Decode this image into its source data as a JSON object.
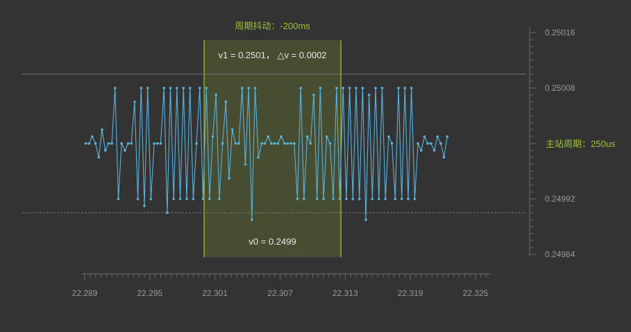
{
  "chart_data": {
    "type": "line",
    "title": "",
    "xlabel": "",
    "ylabel": "",
    "xlim": [
      22.288,
      22.327
    ],
    "ylim": [
      0.24984,
      0.25016
    ],
    "x_ticks": [
      "22.289",
      "22.295",
      "22.301",
      "22.307",
      "22.313",
      "22.319",
      "22.325"
    ],
    "y_ticks": [
      "0.25016",
      "0.25008",
      "0.25000",
      "0.24992",
      "0.24984"
    ],
    "y_tick_labels": {
      "0.25016": "0.25016",
      "0.25008": "0.25008",
      "0.24992": "0.24992",
      "0.24984": "0.24984"
    },
    "period_label": "主站周期：250us",
    "jitter_label": "周期抖动：-200ms",
    "cursor_region": {
      "x_start": 22.3,
      "x_end": 22.3126,
      "v1_text": "v1 = 0.2501，  △v = 0.0002",
      "v0_text": "v0 = 0.2499"
    },
    "reference_lines": {
      "v1": 0.2501,
      "v0": 0.2499
    },
    "series": [
      {
        "color": "#5bb4e0",
        "x_start": 22.2891,
        "x_step": 0.0003,
        "values": [
          0.25,
          0.25,
          0.25001,
          0.25,
          0.24998,
          0.25002,
          0.24999,
          0.25,
          0.25,
          0.25008,
          0.24992,
          0.25,
          0.24999,
          0.25,
          0.25,
          0.25006,
          0.24992,
          0.25008,
          0.24991,
          0.25008,
          0.24992,
          0.25,
          0.25,
          0.25,
          0.25008,
          0.2499,
          0.25008,
          0.24992,
          0.25008,
          0.24992,
          0.25008,
          0.24992,
          0.25008,
          0.24992,
          0.25,
          0.25008,
          0.24992,
          0.25008,
          0.24992,
          0.25001,
          0.25007,
          0.24992,
          0.25,
          0.25006,
          0.24995,
          0.25002,
          0.25,
          0.25,
          0.25008,
          0.24997,
          0.25008,
          0.24989,
          0.25008,
          0.24998,
          0.25,
          0.25,
          0.25001,
          0.25,
          0.25,
          0.25,
          0.25001,
          0.25,
          0.25,
          0.25,
          0.25,
          0.24992,
          0.25008,
          0.24992,
          0.25001,
          0.25,
          0.25007,
          0.24992,
          0.25008,
          0.24992,
          0.25001,
          0.25,
          0.24992,
          0.25008,
          0.24992,
          0.25008,
          0.24992,
          0.25008,
          0.24992,
          0.25008,
          0.24992,
          0.25008,
          0.24989,
          0.25007,
          0.24992,
          0.25008,
          0.24992,
          0.25008,
          0.24992,
          0.25001,
          0.25,
          0.24992,
          0.25008,
          0.24992,
          0.25008,
          0.24992,
          0.25008,
          0.24992,
          0.25,
          0.24999,
          0.25001,
          0.25,
          0.25,
          0.24999,
          0.25001,
          0.25,
          0.24998,
          0.25001
        ]
      }
    ],
    "grid": false,
    "legend": "none"
  }
}
